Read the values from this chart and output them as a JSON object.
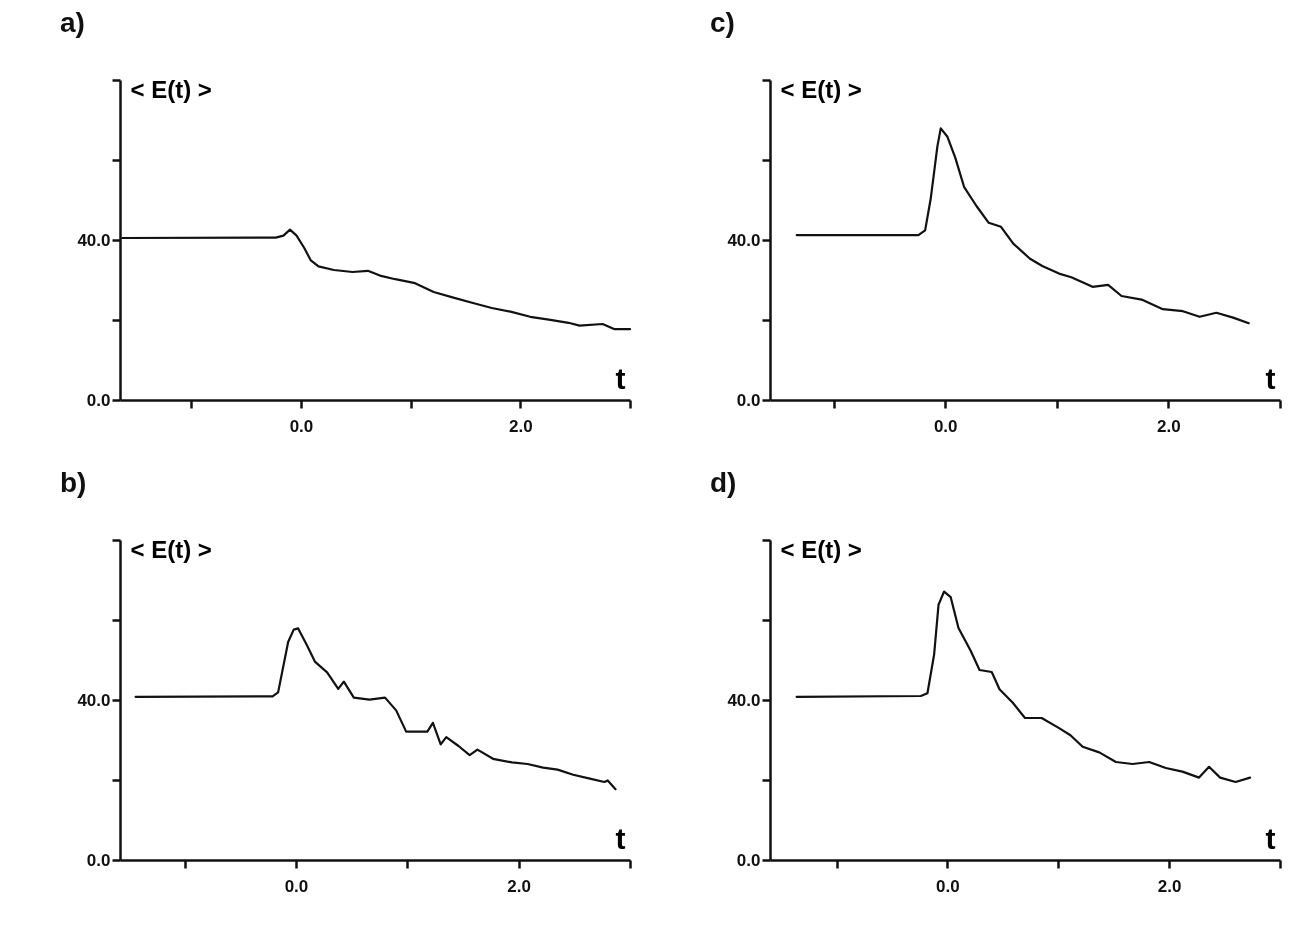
{
  "chart_data": [
    {
      "type": "line",
      "title": "a)",
      "ylabel": "< E(t) >",
      "xlabel": "t",
      "xlim": [
        -1.65,
        3.0
      ],
      "ylim": [
        0,
        80
      ],
      "xticks": [
        {
          "value": -1,
          "label": null
        },
        {
          "value": 0,
          "label": "0.0"
        },
        {
          "value": 1,
          "label": null
        },
        {
          "value": 2,
          "label": "2.0"
        },
        {
          "value": 3,
          "label": null
        }
      ],
      "yticks": [
        {
          "value": 0,
          "label": "0.0"
        },
        {
          "value": 20,
          "label": null
        },
        {
          "value": 40,
          "label": "40.0"
        },
        {
          "value": 60,
          "label": null
        },
        {
          "value": 80,
          "label": null
        }
      ],
      "x": [
        -1.63,
        -0.23,
        -0.16,
        -0.1,
        -0.04,
        0.03,
        0.09,
        0.16,
        0.3,
        0.47,
        0.61,
        0.72,
        0.86,
        1.04,
        1.21,
        1.39,
        1.56,
        1.74,
        1.91,
        2.09,
        2.26,
        2.44,
        2.54,
        2.75,
        2.86,
        3.0
      ],
      "series": [
        {
          "color": "#111111",
          "values": [
            40.5,
            40.6,
            41.1,
            42.6,
            41.1,
            38.0,
            34.9,
            33.4,
            32.5,
            32.0,
            32.3,
            31.1,
            30.2,
            29.2,
            27.0,
            25.6,
            24.3,
            23.0,
            22.1,
            20.8,
            20.1,
            19.3,
            18.6,
            19.0,
            17.7,
            17.7
          ]
        }
      ]
    },
    {
      "type": "line",
      "title": "c)",
      "ylabel": "< E(t) >",
      "xlabel": "t",
      "xlim": [
        -1.57,
        3.0
      ],
      "ylim": [
        0,
        80
      ],
      "xticks": [
        {
          "value": -1,
          "label": null
        },
        {
          "value": 0,
          "label": "0.0"
        },
        {
          "value": 1,
          "label": null
        },
        {
          "value": 2,
          "label": "2.0"
        },
        {
          "value": 3,
          "label": null
        }
      ],
      "yticks": [
        {
          "value": 0,
          "label": "0.0"
        },
        {
          "value": 20,
          "label": null
        },
        {
          "value": 40,
          "label": "40.0"
        },
        {
          "value": 60,
          "label": null
        },
        {
          "value": 80,
          "label": null
        }
      ],
      "x": [
        -1.33,
        -0.24,
        -0.18,
        -0.13,
        -0.07,
        -0.04,
        0.02,
        0.09,
        0.17,
        0.28,
        0.39,
        0.5,
        0.61,
        0.76,
        0.87,
        1.02,
        1.13,
        1.32,
        1.46,
        1.58,
        1.76,
        1.95,
        2.13,
        2.28,
        2.43,
        2.58,
        2.72
      ],
      "series": [
        {
          "color": "#111111",
          "values": [
            41.2,
            41.2,
            42.4,
            50.3,
            63.4,
            67.9,
            65.8,
            60.6,
            53.2,
            48.5,
            44.3,
            43.3,
            39.1,
            35.3,
            33.5,
            31.6,
            30.7,
            28.3,
            28.8,
            26.0,
            25.1,
            22.7,
            22.2,
            20.8,
            21.8,
            20.6,
            19.2
          ]
        }
      ]
    },
    {
      "type": "line",
      "title": "b)",
      "ylabel": "< E(t) >",
      "xlabel": "t",
      "xlim": [
        -1.58,
        3.0
      ],
      "ylim": [
        0,
        80
      ],
      "xticks": [
        {
          "value": -1,
          "label": null
        },
        {
          "value": 0,
          "label": "0.0"
        },
        {
          "value": 1,
          "label": null
        },
        {
          "value": 2,
          "label": "2.0"
        },
        {
          "value": 3,
          "label": null
        }
      ],
      "yticks": [
        {
          "value": 0,
          "label": "0.0"
        },
        {
          "value": 20,
          "label": null
        },
        {
          "value": 40,
          "label": "40.0"
        },
        {
          "value": 60,
          "label": null
        },
        {
          "value": 80,
          "label": null
        }
      ],
      "x": [
        -1.44,
        -0.21,
        -0.16,
        -0.07,
        -0.02,
        0.02,
        0.1,
        0.17,
        0.28,
        0.38,
        0.43,
        0.52,
        0.66,
        0.8,
        0.9,
        0.99,
        1.07,
        1.18,
        1.23,
        1.3,
        1.35,
        1.46,
        1.56,
        1.63,
        1.77,
        1.94,
        2.08,
        2.22,
        2.35,
        2.49,
        2.63,
        2.77,
        2.8,
        2.87
      ],
      "series": [
        {
          "color": "#111111",
          "values": [
            40.8,
            40.9,
            41.9,
            54.5,
            57.6,
            57.9,
            53.6,
            49.6,
            46.9,
            42.8,
            44.6,
            40.6,
            40.1,
            40.6,
            37.4,
            32.1,
            32.1,
            32.1,
            34.3,
            28.9,
            30.7,
            28.5,
            26.2,
            27.6,
            25.3,
            24.4,
            24.0,
            23.1,
            22.6,
            21.3,
            20.4,
            19.5,
            19.9,
            17.7
          ]
        }
      ]
    },
    {
      "type": "line",
      "title": "d)",
      "ylabel": "< E(t) >",
      "xlabel": "t",
      "xlim": [
        -1.6,
        3.0
      ],
      "ylim": [
        0,
        80
      ],
      "xticks": [
        {
          "value": -1,
          "label": null
        },
        {
          "value": 0,
          "label": "0.0"
        },
        {
          "value": 1,
          "label": null
        },
        {
          "value": 2,
          "label": "2.0"
        },
        {
          "value": 3,
          "label": null
        }
      ],
      "yticks": [
        {
          "value": 0,
          "label": "0.0"
        },
        {
          "value": 20,
          "label": null
        },
        {
          "value": 40,
          "label": "40.0"
        },
        {
          "value": 60,
          "label": null
        },
        {
          "value": 80,
          "label": null
        }
      ],
      "x": [
        -1.36,
        -0.24,
        -0.18,
        -0.12,
        -0.08,
        -0.03,
        0.03,
        0.1,
        0.21,
        0.29,
        0.4,
        0.47,
        0.59,
        0.7,
        0.85,
        1.0,
        1.11,
        1.22,
        1.37,
        1.52,
        1.67,
        1.82,
        1.97,
        2.12,
        2.27,
        2.36,
        2.46,
        2.6,
        2.73
      ],
      "series": [
        {
          "color": "#111111",
          "values": [
            40.8,
            41.0,
            41.7,
            51.3,
            63.8,
            67.1,
            65.7,
            58.0,
            52.3,
            47.5,
            47.0,
            42.7,
            39.3,
            35.5,
            35.5,
            33.1,
            31.2,
            28.3,
            26.9,
            24.5,
            24.0,
            24.5,
            23.0,
            22.1,
            20.6,
            23.3,
            20.6,
            19.5,
            20.6
          ]
        }
      ]
    }
  ]
}
